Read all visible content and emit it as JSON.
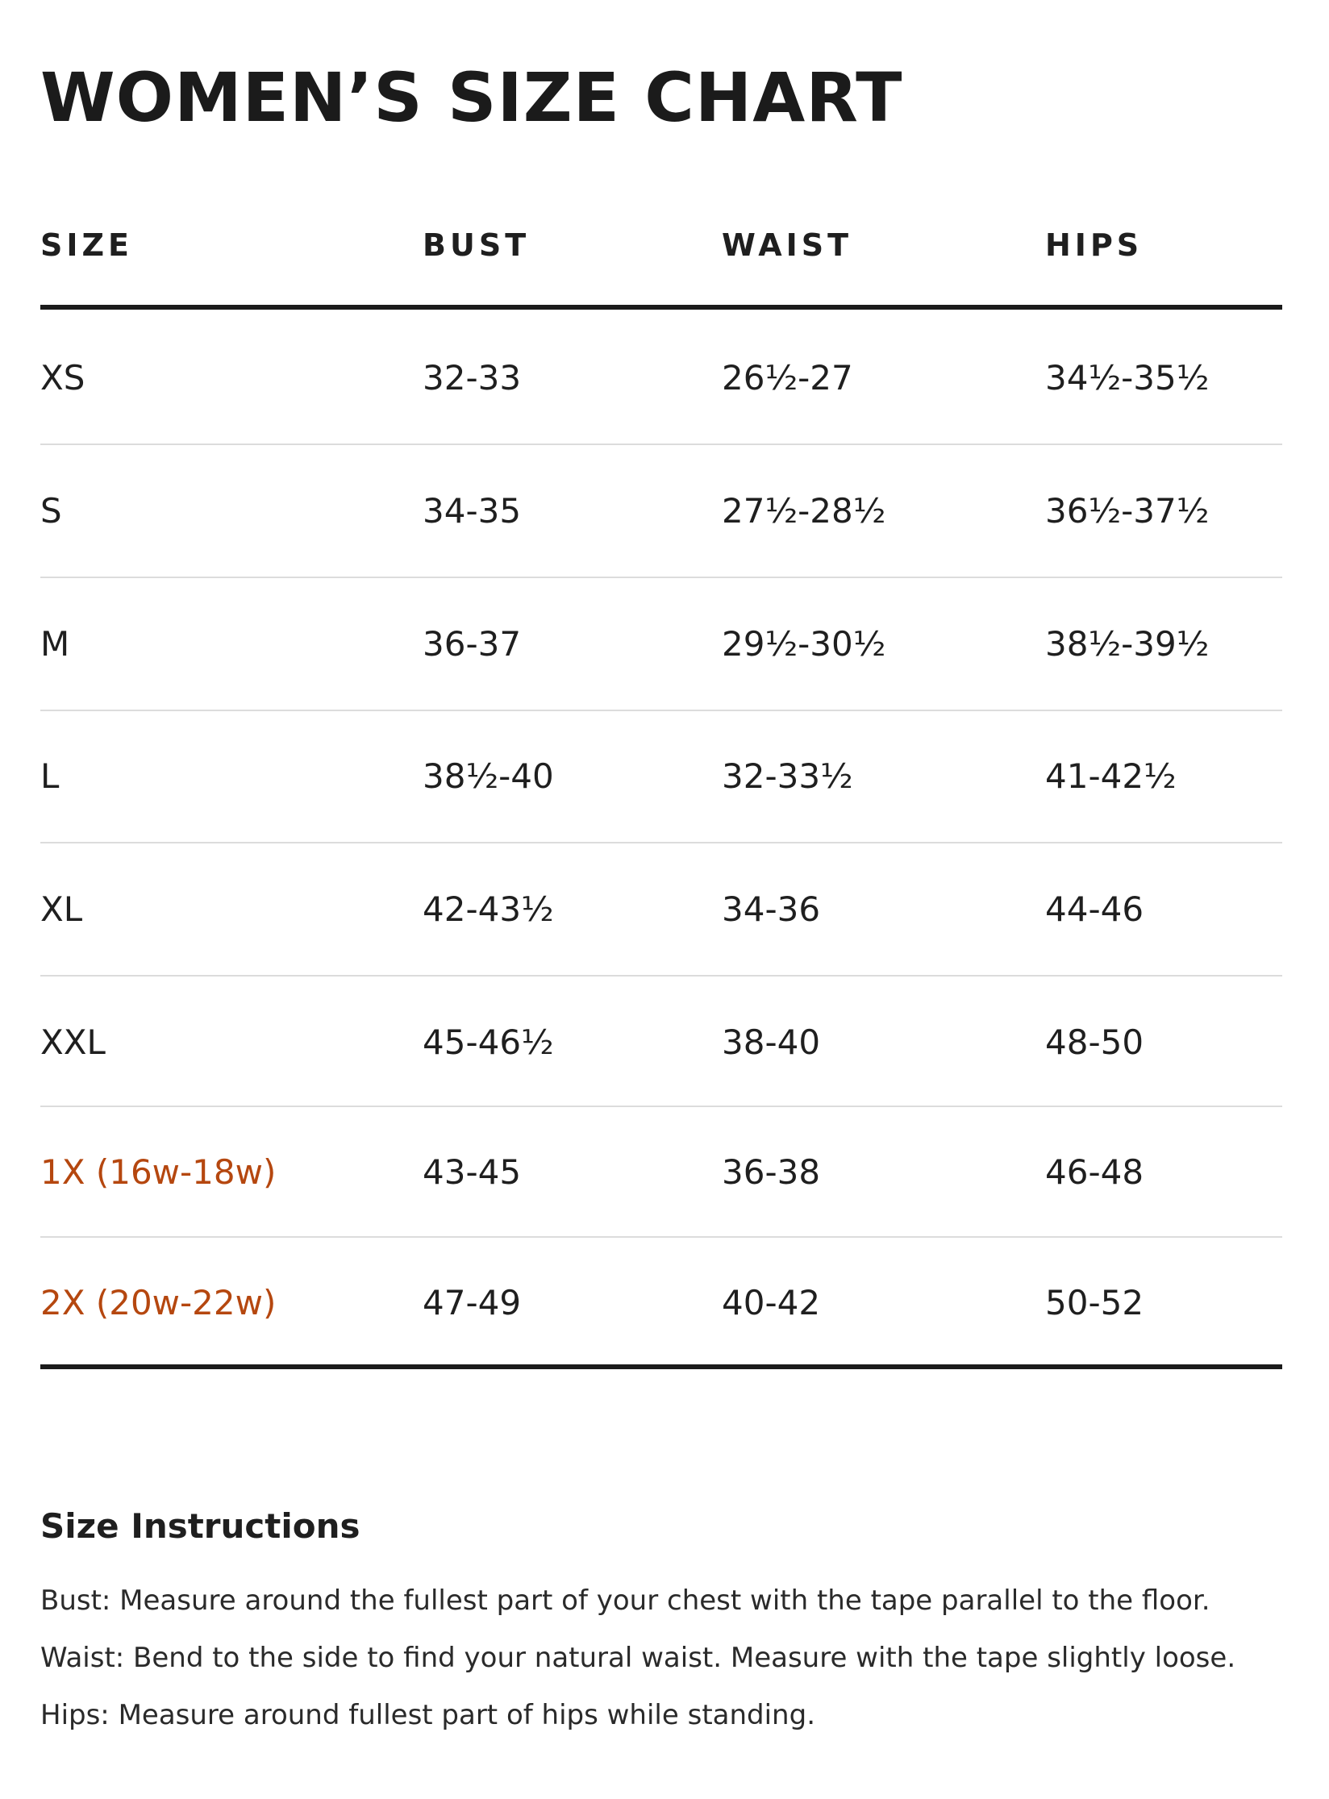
{
  "header": {
    "title": "WOMEN’S SIZE CHART"
  },
  "table": {
    "headers": [
      "SIZE",
      "BUST",
      "WAIST",
      "HIPS"
    ],
    "rows": [
      [
        "XS",
        "32-33",
        "26½-27",
        "34½-35½"
      ],
      [
        "S",
        "34-35",
        "27½-28½",
        "36½-37½"
      ],
      [
        "M",
        "36-37",
        "29½-30½",
        "38½-39½"
      ],
      [
        "L",
        "38½-40",
        "32-33½",
        "41-42½"
      ],
      [
        "XL",
        "42-43½",
        "34-36",
        "44-46"
      ],
      [
        "XXL",
        "45-46½",
        "38-40",
        "48-50"
      ],
      [
        "1X (16w-18w)",
        "43-45",
        "36-38",
        "46-48"
      ],
      [
        "2X (20w-22w)",
        "47-49",
        "40-42",
        "50-52"
      ]
    ]
  },
  "instructions": {
    "title": "Size Instructions",
    "lines": [
      "Bust: Measure around the fullest part of your chest with the tape parallel to the floor.",
      "Waist: Bend to the side to find your natural waist. Measure with the tape slightly loose.",
      "Hips: Measure around fullest part of hips while standing."
    ]
  }
}
